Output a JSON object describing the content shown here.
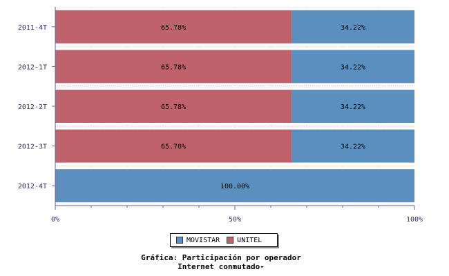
{
  "chart_data": {
    "type": "bar",
    "orientation": "horizontal",
    "stacked": true,
    "categories": [
      "2011-4T",
      "2012-1T",
      "2012-2T",
      "2012-3T",
      "2012-4T"
    ],
    "series": [
      {
        "name": "UNITEL",
        "color": "#c0626b",
        "values": [
          65.78,
          65.78,
          65.78,
          65.78,
          0
        ]
      },
      {
        "name": "MOVISTAR",
        "color": "#5b8fbf",
        "values": [
          34.22,
          34.22,
          34.22,
          34.22,
          100.0
        ]
      }
    ],
    "data_labels": [
      [
        "65.78%",
        "65.78%",
        "65.78%",
        "65.78%",
        ""
      ],
      [
        "34.22%",
        "34.22%",
        "34.22%",
        "34.22%",
        "100.00%"
      ]
    ],
    "xlim": [
      0,
      100
    ],
    "x_ticks": [
      "0%",
      "50%",
      "100%"
    ],
    "x_tick_values": [
      0,
      50,
      100
    ],
    "grid": true,
    "legend_position": "bottom-center",
    "title_lines": [
      "Gráfica: Participación por operador",
      "Internet conmutado-"
    ]
  },
  "legend": {
    "items": [
      {
        "label": "MOVISTAR",
        "color": "#5b8fbf"
      },
      {
        "label": "UNITEL",
        "color": "#c0626b"
      }
    ]
  }
}
